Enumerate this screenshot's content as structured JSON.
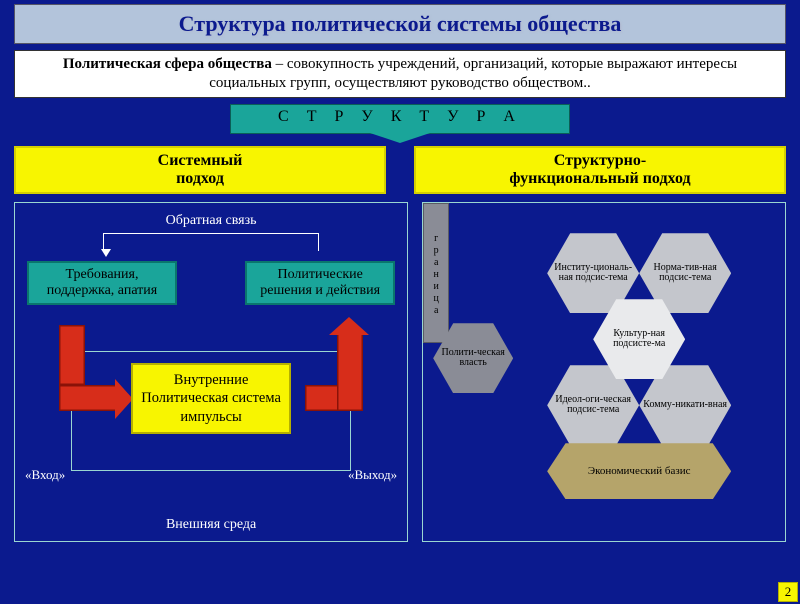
{
  "colors": {
    "background": "#0b1a8e",
    "title_bg": "#b3c4db",
    "white_box": "#ffffff",
    "teal": "#1aa59a",
    "yellow": "#f8f500",
    "red": "#d72d1a",
    "hex_light": "#c4c6cc",
    "hex_dark": "#8a8c96",
    "hex_white": "#e9eaec",
    "hex_gold": "#b5a46a",
    "outline": "#9ad6d1"
  },
  "title": "Структура политической системы общества",
  "definition": {
    "bold": "Политическая сфера общества",
    "rest": " – совокупность учреждений, организаций, которые выражают интересы социальных групп, осуществляют руководство обществом.."
  },
  "struktura_label": "С Т Р У К Т У Р А",
  "approach": {
    "left": "Системный\nподход",
    "right": "Структурно-\nфункциональный подход"
  },
  "left_panel": {
    "feedback": "Обратная связь",
    "req": "Требования, поддержка, апатия",
    "dec": "Политические решения и действия",
    "center": "Внутренние Политическая система импульсы",
    "input": "«Вход»",
    "output": "«Выход»",
    "env": "Внешняя среда"
  },
  "right_panel": {
    "power": "Полити-ческая власть",
    "granica": "граница",
    "inst": "Институ-циональ-ная подсис-тема",
    "norm": "Норма-тив-ная подсис-тема",
    "kult": "Культур-ная подсисте-ма",
    "ideo": "Идеол-оги-ческая подсис-тема",
    "komm": "Комму-никати-вная",
    "econ": "Экономический базис"
  },
  "slide_number": "2"
}
